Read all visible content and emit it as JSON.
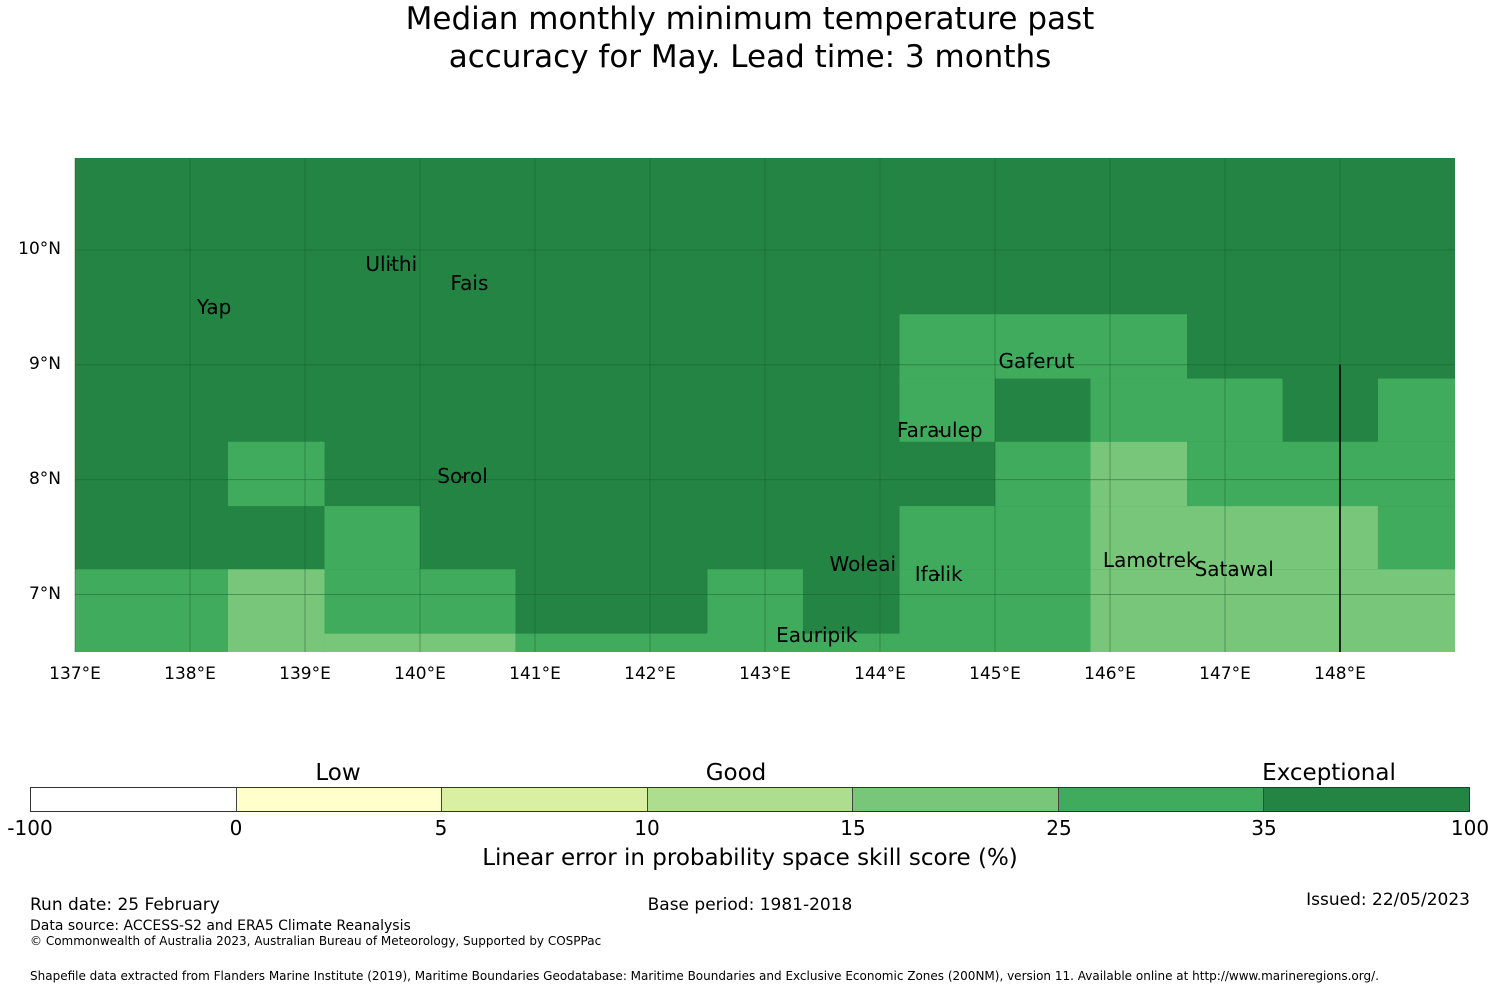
{
  "title": {
    "line1": "Median monthly minimum temperature past",
    "line2": "accuracy for May. Lead time: 3 months"
  },
  "map": {
    "lon_range": [
      137,
      149
    ],
    "lat_range": [
      6.5,
      10.8
    ],
    "lat_ticks": [
      {
        "value": 10,
        "label": "10°N"
      },
      {
        "value": 9,
        "label": "9°N"
      },
      {
        "value": 8,
        "label": "8°N"
      },
      {
        "value": 7,
        "label": "7°N"
      }
    ],
    "lon_ticks": [
      {
        "value": 137,
        "label": "137°E"
      },
      {
        "value": 138,
        "label": "138°E"
      },
      {
        "value": 139,
        "label": "139°E"
      },
      {
        "value": 140,
        "label": "140°E"
      },
      {
        "value": 141,
        "label": "141°E"
      },
      {
        "value": 142,
        "label": "142°E"
      },
      {
        "value": 143,
        "label": "143°E"
      },
      {
        "value": 144,
        "label": "144°E"
      },
      {
        "value": 145,
        "label": "145°E"
      },
      {
        "value": 146,
        "label": "146°E"
      },
      {
        "value": 147,
        "label": "147°E"
      },
      {
        "value": 148,
        "label": "148°E"
      }
    ],
    "colors": {
      "exceptional": "#238443",
      "band_25_35": "#41ab5d",
      "band_15_25": "#78c679",
      "band_10_15": "#addd8e",
      "band_5_10": "#d9f0a3",
      "band_0_5": "#ffffcc",
      "band_neg": "#ffffff"
    },
    "cells": [
      {
        "lon": [
          144.17,
          146.67
        ],
        "lat": [
          8.88,
          9.44
        ],
        "band": "band_25_35"
      },
      {
        "lon": [
          144.17,
          145.0
        ],
        "lat": [
          8.33,
          8.88
        ],
        "band": "band_25_35"
      },
      {
        "lon": [
          145.83,
          147.5
        ],
        "lat": [
          8.33,
          8.88
        ],
        "band": "band_25_35"
      },
      {
        "lon": [
          148.33,
          149.0
        ],
        "lat": [
          8.33,
          8.88
        ],
        "band": "band_25_35"
      },
      {
        "lon": [
          138.33,
          139.17
        ],
        "lat": [
          7.77,
          8.33
        ],
        "band": "band_25_35"
      },
      {
        "lon": [
          145.0,
          145.83
        ],
        "lat": [
          7.77,
          8.33
        ],
        "band": "band_25_35"
      },
      {
        "lon": [
          145.83,
          146.67
        ],
        "lat": [
          7.77,
          8.33
        ],
        "band": "band_15_25"
      },
      {
        "lon": [
          146.67,
          149.0
        ],
        "lat": [
          7.77,
          8.33
        ],
        "band": "band_25_35"
      },
      {
        "lon": [
          139.17,
          140.0
        ],
        "lat": [
          7.22,
          7.77
        ],
        "band": "band_25_35"
      },
      {
        "lon": [
          144.17,
          145.83
        ],
        "lat": [
          7.22,
          7.77
        ],
        "band": "band_25_35"
      },
      {
        "lon": [
          145.83,
          148.33
        ],
        "lat": [
          7.22,
          7.77
        ],
        "band": "band_15_25"
      },
      {
        "lon": [
          148.33,
          149.0
        ],
        "lat": [
          7.22,
          7.77
        ],
        "band": "band_25_35"
      },
      {
        "lon": [
          137.0,
          138.33
        ],
        "lat": [
          6.5,
          7.22
        ],
        "band": "band_25_35"
      },
      {
        "lon": [
          138.33,
          139.17
        ],
        "lat": [
          6.5,
          7.22
        ],
        "band": "band_15_25"
      },
      {
        "lon": [
          139.17,
          140.83
        ],
        "lat": [
          6.66,
          7.22
        ],
        "band": "band_25_35"
      },
      {
        "lon": [
          139.17,
          140.83
        ],
        "lat": [
          6.5,
          6.66
        ],
        "band": "band_15_25"
      },
      {
        "lon": [
          140.83,
          142.5
        ],
        "lat": [
          6.5,
          6.66
        ],
        "band": "band_25_35"
      },
      {
        "lon": [
          142.5,
          143.33
        ],
        "lat": [
          6.5,
          7.22
        ],
        "band": "band_25_35"
      },
      {
        "lon": [
          143.33,
          144.17
        ],
        "lat": [
          6.5,
          6.66
        ],
        "band": "band_25_35"
      },
      {
        "lon": [
          144.17,
          145.83
        ],
        "lat": [
          6.5,
          7.22
        ],
        "band": "band_25_35"
      },
      {
        "lon": [
          145.83,
          149.0
        ],
        "lat": [
          6.5,
          7.22
        ],
        "band": "band_15_25"
      }
    ],
    "boundary_line": {
      "lon": 148.0,
      "lat": [
        6.5,
        9.0
      ]
    },
    "places": [
      {
        "name": "Ulithi",
        "lon": 139.75,
        "lat": 9.87
      },
      {
        "name": "Fais",
        "lon": 140.43,
        "lat": 9.7
      },
      {
        "name": "Yap",
        "lon": 138.21,
        "lat": 9.49
      },
      {
        "name": "Gaferut",
        "lon": 145.36,
        "lat": 9.02
      },
      {
        "name": "Faraulep",
        "lon": 144.52,
        "lat": 8.42
      },
      {
        "name": "Sorol",
        "lon": 140.37,
        "lat": 8.02
      },
      {
        "name": "Woleai",
        "lon": 143.85,
        "lat": 7.26
      },
      {
        "name": "Ifalik",
        "lon": 144.51,
        "lat": 7.17
      },
      {
        "name": "Lamotrek",
        "lon": 146.35,
        "lat": 7.29
      },
      {
        "name": "Satawal",
        "lon": 147.08,
        "lat": 7.21
      },
      {
        "name": "Eauripik",
        "lon": 143.45,
        "lat": 6.64
      }
    ]
  },
  "legend": {
    "categories": [
      "Low",
      "Good",
      "Exceptional"
    ],
    "ticks": [
      "-100",
      "0",
      "5",
      "10",
      "15",
      "25",
      "35",
      "100"
    ],
    "colors": [
      "#ffffff",
      "#ffffcc",
      "#d9f0a3",
      "#addd8e",
      "#78c679",
      "#41ab5d",
      "#238443"
    ],
    "title": "Linear error in probability space skill score (%)"
  },
  "footer": {
    "run_date": "Run date: 25 February",
    "base_period": "Base period: 1981-2018",
    "issued": "Issued: 22/05/2023",
    "data_source": "Data source: ACCESS-S2 and ERA5 Climate Reanalysis",
    "copyright": "© Commonwealth of Australia 2023, Australian Bureau of Meteorology, Supported by COSPPac",
    "shapefile": "Shapefile data extracted from Flanders Marine Institute (2019), Maritime Boundaries Geodatabase: Maritime Boundaries and Exclusive Economic Zones (200NM), version 11. Available online at http://www.marineregions.org/."
  }
}
